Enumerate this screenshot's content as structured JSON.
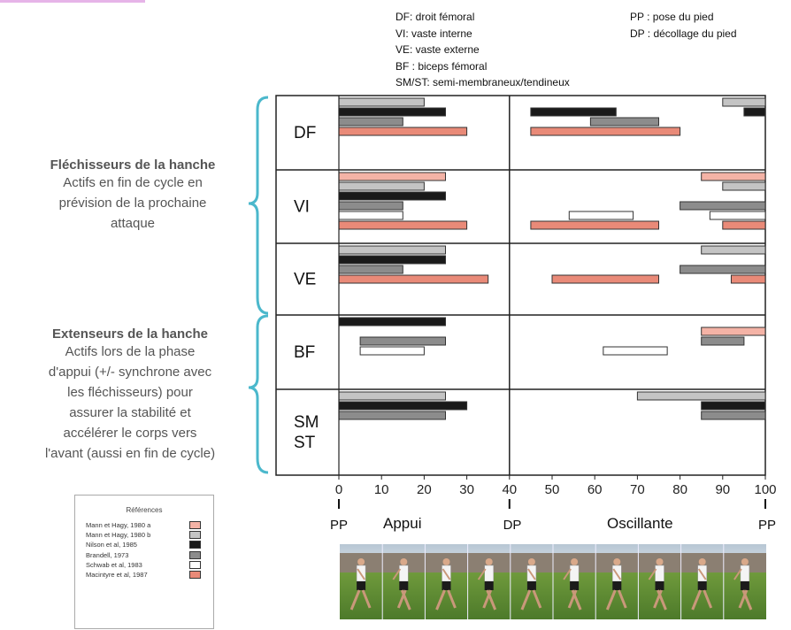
{
  "legend_abbreviations": {
    "left": [
      "DF: droit fémoral",
      "VI: vaste interne",
      "VE: vaste externe",
      "BF : biceps fémoral",
      "SM/ST: semi-membraneux/tendineux"
    ],
    "right": [
      "PP : pose du pied",
      "DP : décollage du pied"
    ]
  },
  "groups": {
    "flexors": {
      "title": "Fléchisseurs de la hanche",
      "desc": [
        "Actifs en fin de cycle en",
        "prévision de la prochaine",
        "attaque"
      ]
    },
    "extensors": {
      "title": "Extenseurs de la hanche",
      "desc": [
        "Actifs lors de la phase",
        "d'appui (+/- synchrone avec",
        "les fléchisseurs) pour",
        "assurer la stabilité et",
        "accélérer le corps vers",
        "l'avant (aussi en fin de cycle)"
      ]
    }
  },
  "references": {
    "title": "Références",
    "items": [
      {
        "label": "Mann et Hagy, 1980 a",
        "color": "#f4b3a6"
      },
      {
        "label": "Mann et Hagy, 1980 b",
        "color": "#c4c4c4"
      },
      {
        "label": "Nilson et al, 1985",
        "color": "#1a1a1a"
      },
      {
        "label": "Brandell, 1973",
        "color": "#8c8c8c"
      },
      {
        "label": "Schwab et al, 1983",
        "color": "#ffffff"
      },
      {
        "label": "Macintyre et al, 1987",
        "color": "#e98a78"
      }
    ]
  },
  "phase_labels": {
    "pp_left": "PP",
    "dp": "DP",
    "pp_right": "PP",
    "appui": "Appui",
    "oscillante": "Oscillante"
  },
  "chart_data": {
    "type": "bar",
    "orientation": "horizontal-ranges",
    "xlim": [
      0,
      100
    ],
    "xticks": [
      0,
      10,
      20,
      30,
      40,
      50,
      60,
      70,
      80,
      90,
      100
    ],
    "divider_at": 40,
    "series_colors": {
      "Mann et Hagy, 1980 a": "#f4b3a6",
      "Mann et Hagy, 1980 b": "#c4c4c4",
      "Nilson et al, 1985": "#1a1a1a",
      "Brandell, 1973": "#8c8c8c",
      "Schwab et al, 1983": "#ffffff",
      "Macintyre et al, 1987": "#e98a78"
    },
    "muscles": [
      {
        "label": [
          "DF"
        ],
        "bars": [
          {
            "series": "Mann et Hagy, 1980 b",
            "ranges": [
              [
                0,
                20
              ],
              [
                90,
                100
              ]
            ]
          },
          {
            "series": "Nilson et al, 1985",
            "ranges": [
              [
                0,
                25
              ],
              [
                45,
                65
              ],
              [
                95,
                100
              ]
            ]
          },
          {
            "series": "Brandell, 1973",
            "ranges": [
              [
                0,
                15
              ],
              [
                59,
                75
              ]
            ]
          },
          {
            "series": "Macintyre et al, 1987",
            "ranges": [
              [
                0,
                30
              ],
              [
                45,
                80
              ]
            ]
          }
        ]
      },
      {
        "label": [
          "VI"
        ],
        "bars": [
          {
            "series": "Mann et Hagy, 1980 a",
            "ranges": [
              [
                0,
                25
              ],
              [
                85,
                100
              ]
            ]
          },
          {
            "series": "Mann et Hagy, 1980 b",
            "ranges": [
              [
                0,
                20
              ],
              [
                90,
                100
              ]
            ]
          },
          {
            "series": "Nilson et al, 1985",
            "ranges": [
              [
                0,
                25
              ]
            ]
          },
          {
            "series": "Brandell, 1973",
            "ranges": [
              [
                0,
                15
              ],
              [
                80,
                100
              ]
            ]
          },
          {
            "series": "Schwab et al, 1983",
            "ranges": [
              [
                0,
                15
              ],
              [
                54,
                69
              ],
              [
                87,
                100
              ]
            ]
          },
          {
            "series": "Macintyre et al, 1987",
            "ranges": [
              [
                0,
                30
              ],
              [
                45,
                75
              ],
              [
                90,
                100
              ]
            ]
          }
        ]
      },
      {
        "label": [
          "VE"
        ],
        "bars": [
          {
            "series": "Mann et Hagy, 1980 b",
            "ranges": [
              [
                0,
                25
              ],
              [
                85,
                100
              ]
            ]
          },
          {
            "series": "Nilson et al, 1985",
            "ranges": [
              [
                0,
                25
              ]
            ]
          },
          {
            "series": "Brandell, 1973",
            "ranges": [
              [
                0,
                15
              ],
              [
                80,
                100
              ]
            ]
          },
          {
            "series": "Macintyre et al, 1987",
            "ranges": [
              [
                0,
                35
              ],
              [
                50,
                75
              ],
              [
                92,
                100
              ]
            ]
          }
        ]
      },
      {
        "label": [
          "BF"
        ],
        "bars": [
          {
            "series": "Nilson et al, 1985",
            "ranges": [
              [
                0,
                25
              ]
            ]
          },
          {
            "series": "Mann et Hagy, 1980 a",
            "ranges": [
              [
                85,
                100
              ]
            ]
          },
          {
            "series": "Brandell, 1973",
            "ranges": [
              [
                5,
                25
              ],
              [
                85,
                95
              ]
            ]
          },
          {
            "series": "Schwab et al, 1983",
            "ranges": [
              [
                5,
                20
              ],
              [
                62,
                77
              ]
            ]
          }
        ]
      },
      {
        "label": [
          "SM",
          "ST"
        ],
        "bars": [
          {
            "series": "Mann et Hagy, 1980 b",
            "ranges": [
              [
                0,
                25
              ],
              [
                70,
                100
              ]
            ]
          },
          {
            "series": "Nilson et al, 1985",
            "ranges": [
              [
                0,
                30
              ],
              [
                85,
                100
              ]
            ]
          },
          {
            "series": "Brandell, 1973",
            "ranges": [
              [
                0,
                25
              ],
              [
                85,
                100
              ]
            ]
          }
        ]
      }
    ]
  }
}
